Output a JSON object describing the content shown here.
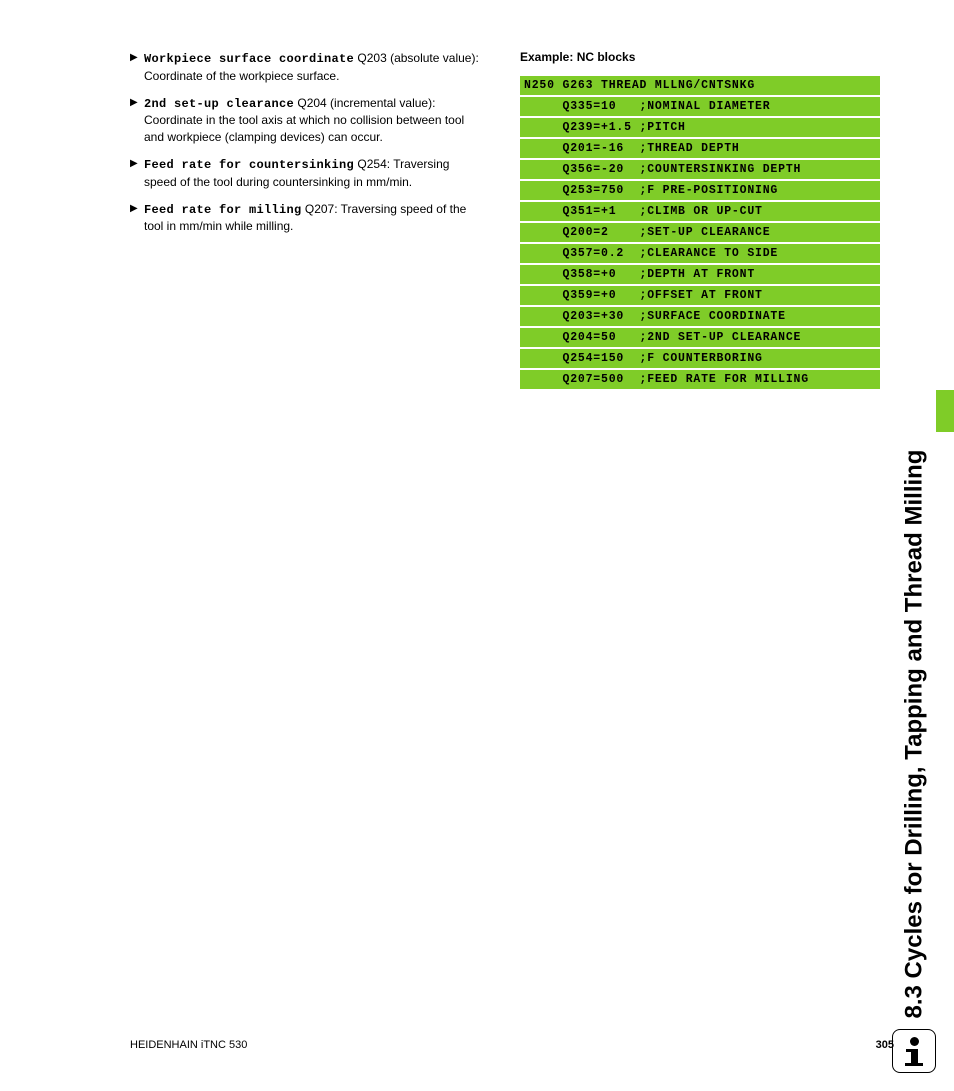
{
  "section_title": "8.3 Cycles for Drilling, Tapping and Thread Milling",
  "bullets": [
    {
      "bold": "Workpiece surface coordinate",
      "code": "Q203",
      "desc": " (absolute value): Coordinate of the workpiece surface."
    },
    {
      "bold": "2nd set-up clearance",
      "code": "Q204",
      "desc": " (incremental value): Coordinate in the tool axis at which no collision between tool and workpiece (clamping devices) can occur."
    },
    {
      "bold": "Feed rate for countersinking",
      "code": "Q254",
      "desc": ": Traversing speed of the tool during countersinking in mm/min."
    },
    {
      "bold": "Feed rate for milling",
      "code": "Q207",
      "desc": ": Traversing speed of the tool in mm/min while milling."
    }
  ],
  "example_heading": "Example: NC blocks",
  "code_lines": [
    "N250 G263 THREAD MLLNG/CNTSNKG",
    "     Q335=10   ;NOMINAL DIAMETER",
    "     Q239=+1.5 ;PITCH",
    "     Q201=-16  ;THREAD DEPTH",
    "     Q356=-20  ;COUNTERSINKING DEPTH",
    "     Q253=750  ;F PRE-POSITIONING",
    "     Q351=+1   ;CLIMB OR UP-CUT",
    "     Q200=2    ;SET-UP CLEARANCE",
    "     Q357=0.2  ;CLEARANCE TO SIDE",
    "     Q358=+0   ;DEPTH AT FRONT",
    "     Q359=+0   ;OFFSET AT FRONT",
    "     Q203=+30  ;SURFACE COORDINATE",
    "     Q204=50   ;2ND SET-UP CLEARANCE",
    "     Q254=150  ;F COUNTERBORING",
    "     Q207=500  ;FEED RATE FOR MILLING"
  ],
  "footer_left": "HEIDENHAIN iTNC 530",
  "page_number": "305",
  "colors": {
    "code_bg": "#7fcc28",
    "text": "#000000",
    "page_bg": "#ffffff"
  }
}
